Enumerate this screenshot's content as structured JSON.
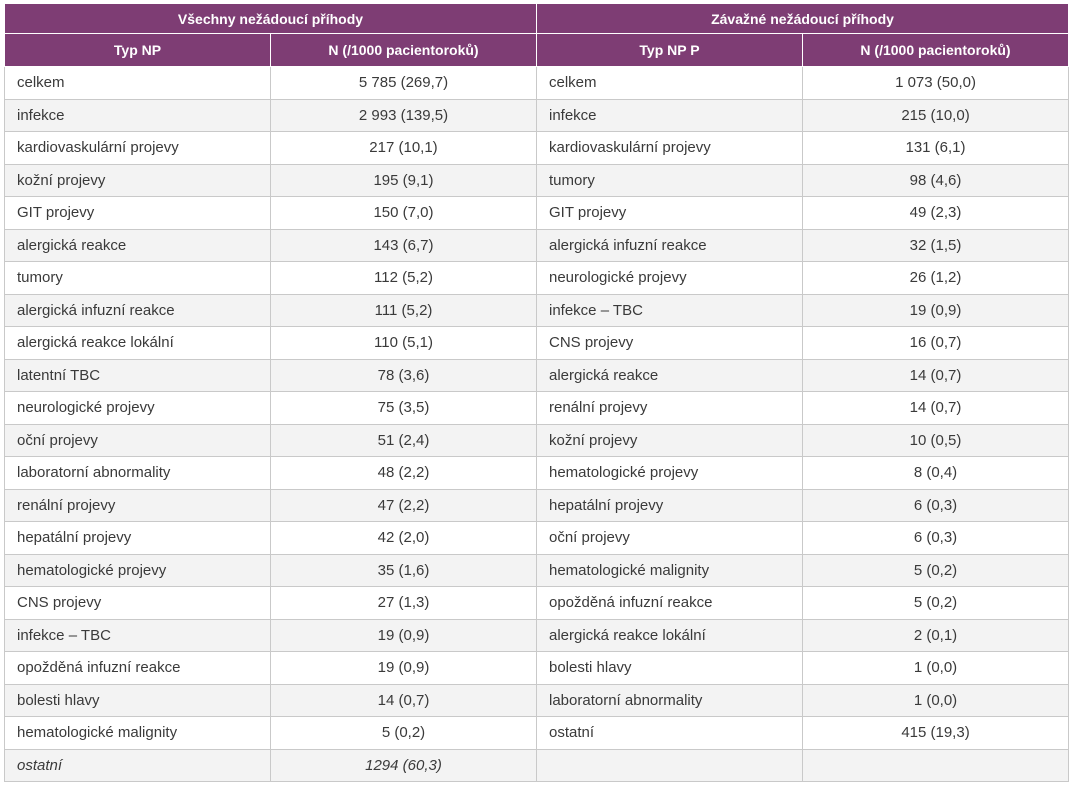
{
  "header": {
    "all_group": "Všechny nežádoucí příhody",
    "serious_group": "Závažné nežádoucí příhody",
    "col_type_all": "Typ NP",
    "col_n_all": "N (/1000 pacientoroků)",
    "col_type_serious": "Typ NP P",
    "col_n_serious": "N (/1000 pacientoroků)"
  },
  "rows": [
    {
      "all_type": "celkem",
      "all_n": "5 785 (269,7)",
      "serious_type": "celkem",
      "serious_n": "1 073 (50,0)"
    },
    {
      "all_type": "infekce",
      "all_n": "2 993 (139,5)",
      "serious_type": "infekce",
      "serious_n": "215 (10,0)"
    },
    {
      "all_type": "kardiovaskulární projevy",
      "all_n": "217 (10,1)",
      "serious_type": "kardiovaskulární projevy",
      "serious_n": "131 (6,1)"
    },
    {
      "all_type": "kožní projevy",
      "all_n": "195 (9,1)",
      "serious_type": "tumory",
      "serious_n": "98 (4,6)"
    },
    {
      "all_type": "GIT projevy",
      "all_n": "150 (7,0)",
      "serious_type": "GIT projevy",
      "serious_n": "49 (2,3)"
    },
    {
      "all_type": "alergická reakce",
      "all_n": "143 (6,7)",
      "serious_type": "alergická infuzní reakce",
      "serious_n": "32 (1,5)"
    },
    {
      "all_type": "tumory",
      "all_n": "112 (5,2)",
      "serious_type": "neurologické projevy",
      "serious_n": "26 (1,2)"
    },
    {
      "all_type": "alergická infuzní reakce",
      "all_n": "111 (5,2)",
      "serious_type": "infekce – TBC",
      "serious_n": "19 (0,9)"
    },
    {
      "all_type": "alergická reakce lokální",
      "all_n": "110 (5,1)",
      "serious_type": "CNS projevy",
      "serious_n": "16 (0,7)"
    },
    {
      "all_type": "latentní TBC",
      "all_n": "78 (3,6)",
      "serious_type": "alergická reakce",
      "serious_n": "14 (0,7)"
    },
    {
      "all_type": "neurologické projevy",
      "all_n": "75 (3,5)",
      "serious_type": "renální projevy",
      "serious_n": "14 (0,7)"
    },
    {
      "all_type": "oční projevy",
      "all_n": "51 (2,4)",
      "serious_type": "kožní projevy",
      "serious_n": "10 (0,5)"
    },
    {
      "all_type": "laboratorní abnormality",
      "all_n": "48 (2,2)",
      "serious_type": "hematologické projevy",
      "serious_n": "8 (0,4)"
    },
    {
      "all_type": "renální projevy",
      "all_n": "47 (2,2)",
      "serious_type": "hepatální projevy",
      "serious_n": "6 (0,3)"
    },
    {
      "all_type": "hepatální projevy",
      "all_n": "42 (2,0)",
      "serious_type": "oční projevy",
      "serious_n": "6 (0,3)"
    },
    {
      "all_type": "hematologické projevy",
      "all_n": "35 (1,6)",
      "serious_type": "hematologické malignity",
      "serious_n": "5 (0,2)"
    },
    {
      "all_type": "CNS projevy",
      "all_n": "27 (1,3)",
      "serious_type": "opožděná infuzní reakce",
      "serious_n": "5 (0,2)"
    },
    {
      "all_type": "infekce – TBC",
      "all_n": "19 (0,9)",
      "serious_type": "alergická reakce lokální",
      "serious_n": "2 (0,1)"
    },
    {
      "all_type": "opožděná infuzní reakce",
      "all_n": "19 (0,9)",
      "serious_type": "bolesti hlavy",
      "serious_n": "1 (0,0)"
    },
    {
      "all_type": "bolesti hlavy",
      "all_n": "14 (0,7)",
      "serious_type": "laboratorní abnormality",
      "serious_n": "1 (0,0)"
    },
    {
      "all_type": "hematologické malignity",
      "all_n": "5 (0,2)",
      "serious_type": "ostatní",
      "serious_n": "415 (19,3)"
    },
    {
      "all_type": "ostatní",
      "all_n": "1294 (60,3)",
      "serious_type": "",
      "serious_n": ""
    }
  ],
  "colors": {
    "header_bg": "#7e3d74",
    "header_text": "#ffffff",
    "zebra_row": "#f3f3f3"
  }
}
